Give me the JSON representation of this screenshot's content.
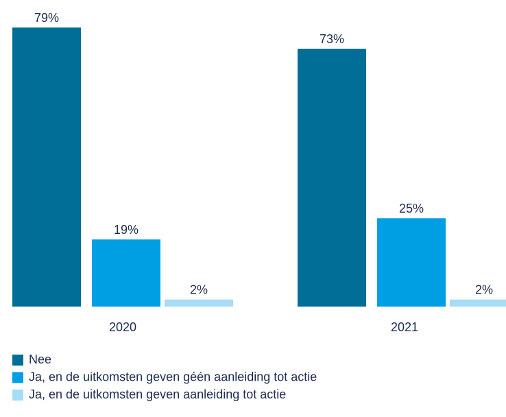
{
  "chart_data": {
    "type": "bar",
    "categories": [
      "2020",
      "2021"
    ],
    "series": [
      {
        "name": "Nee",
        "color": "#006e96",
        "values": [
          79,
          73
        ],
        "value_labels": [
          "79%",
          "73%"
        ]
      },
      {
        "name": "Ja, en de uitkomsten geven géén aanleiding tot actie",
        "color": "#009fe3",
        "values": [
          19,
          25
        ],
        "value_labels": [
          "19%",
          "25%"
        ]
      },
      {
        "name": "Ja, en de uitkomsten geven aanleiding tot actie",
        "color": "#a6dcf5",
        "values": [
          2,
          2
        ],
        "value_labels": [
          "2%",
          "2%"
        ]
      }
    ]
  }
}
